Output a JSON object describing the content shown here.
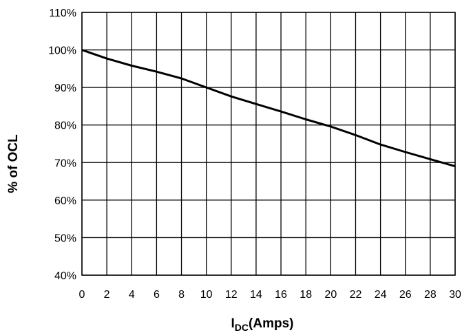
{
  "chart_data": {
    "type": "line",
    "title": "",
    "ylabel": "% of OCL",
    "xlabel_main": "I",
    "xlabel_sub": "DC",
    "xlabel_rest": "(Amps)",
    "xlim": [
      0,
      30
    ],
    "ylim": [
      40,
      110
    ],
    "x_ticks": [
      0,
      2,
      4,
      6,
      8,
      10,
      12,
      14,
      16,
      18,
      20,
      22,
      24,
      26,
      28,
      30
    ],
    "y_ticks": [
      40,
      50,
      60,
      70,
      80,
      90,
      100,
      110
    ],
    "y_tick_suffix": "%",
    "grid": true,
    "series": [
      {
        "x": [
          0,
          2,
          4,
          6,
          8,
          10,
          12,
          14,
          16,
          18,
          20,
          22,
          24,
          26,
          28,
          30
        ],
        "y": [
          100,
          97.7,
          95.8,
          94.2,
          92.4,
          90,
          87.6,
          85.6,
          83.6,
          81.5,
          79.6,
          77.3,
          74.8,
          72.8,
          70.9,
          69
        ],
        "color": "#000000"
      }
    ]
  }
}
